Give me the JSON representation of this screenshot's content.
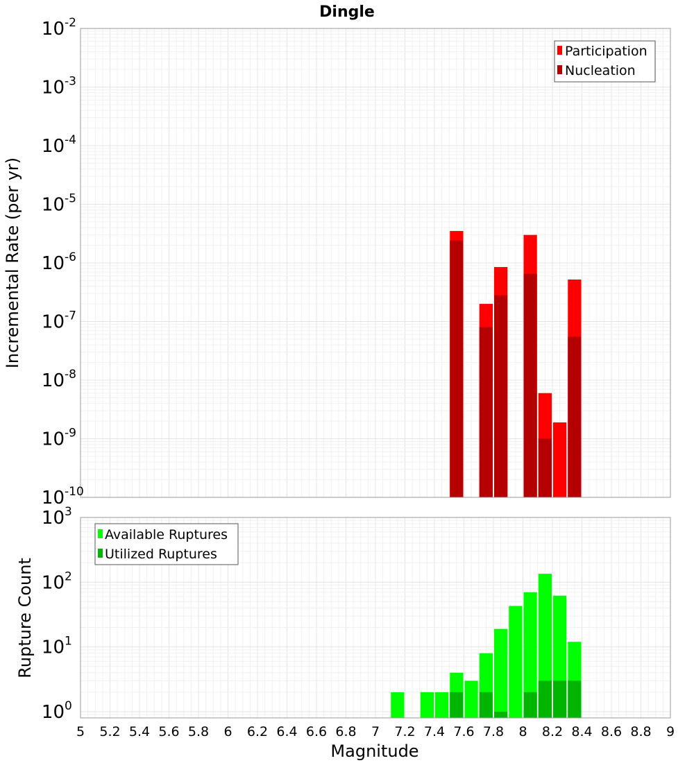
{
  "chart_data": [
    {
      "type": "bar",
      "title": "Dingle",
      "xlabel": "Magnitude",
      "ylabel": "Incremental Rate (per yr)",
      "yscale": "log",
      "ylim": [
        1e-10,
        0.01
      ],
      "xlim": [
        5,
        9
      ],
      "grid": true,
      "legend_position": "top-right",
      "bar_width": 0.1,
      "y_ticks": [
        {
          "base": "10",
          "exp": "-10",
          "value": 1e-10
        },
        {
          "base": "10",
          "exp": "-9",
          "value": 1e-09
        },
        {
          "base": "10",
          "exp": "-8",
          "value": 1e-08
        },
        {
          "base": "10",
          "exp": "-7",
          "value": 1e-07
        },
        {
          "base": "10",
          "exp": "-6",
          "value": 1e-06
        },
        {
          "base": "10",
          "exp": "-5",
          "value": 1e-05
        },
        {
          "base": "10",
          "exp": "-4",
          "value": 0.0001
        },
        {
          "base": "10",
          "exp": "-3",
          "value": 0.001
        },
        {
          "base": "10",
          "exp": "-2",
          "value": 0.01
        }
      ],
      "series": [
        {
          "name": "Participation",
          "color": "#ff0000",
          "x": [
            7.55,
            7.75,
            7.85,
            8.05,
            8.15,
            8.25,
            8.35
          ],
          "values": [
            3.5e-06,
            2e-07,
            8.5e-07,
            3e-06,
            6e-09,
            1.9e-09,
            5.2e-07
          ]
        },
        {
          "name": "Nucleation",
          "color": "#b40000",
          "x": [
            7.55,
            7.75,
            7.85,
            8.05,
            8.15,
            8.35
          ],
          "values": [
            2.4e-06,
            8e-08,
            2.8e-07,
            6.5e-07,
            1e-09,
            5.5e-08
          ]
        }
      ]
    },
    {
      "type": "bar",
      "xlabel": "Magnitude",
      "ylabel": "Rupture Count",
      "yscale": "log",
      "ylim": [
        0.8,
        1000
      ],
      "xlim": [
        5,
        9
      ],
      "grid": true,
      "legend_position": "top-left",
      "bar_width": 0.1,
      "x_ticks": [
        "5",
        "5.2",
        "5.4",
        "5.6",
        "5.8",
        "6",
        "6.2",
        "6.4",
        "6.6",
        "6.8",
        "7",
        "7.2",
        "7.4",
        "7.6",
        "7.8",
        "8",
        "8.2",
        "8.4",
        "8.6",
        "8.8",
        "9"
      ],
      "y_ticks": [
        {
          "base": "10",
          "exp": "0",
          "value": 1
        },
        {
          "base": "10",
          "exp": "1",
          "value": 10
        },
        {
          "base": "10",
          "exp": "2",
          "value": 100
        },
        {
          "base": "10",
          "exp": "3",
          "value": 1000
        }
      ],
      "series": [
        {
          "name": "Available Ruptures",
          "color": "#00ff00",
          "x": [
            7.15,
            7.35,
            7.45,
            7.55,
            7.65,
            7.75,
            7.85,
            7.95,
            8.05,
            8.15,
            8.25,
            8.35
          ],
          "values": [
            2,
            2,
            2,
            4,
            3,
            8,
            19,
            43,
            70,
            135,
            62,
            12
          ]
        },
        {
          "name": "Utilized Ruptures",
          "color": "#00b400",
          "x": [
            7.55,
            7.75,
            7.85,
            8.05,
            8.15,
            8.25,
            8.35
          ],
          "values": [
            2,
            2,
            1,
            2,
            3,
            3,
            3
          ]
        }
      ]
    }
  ]
}
